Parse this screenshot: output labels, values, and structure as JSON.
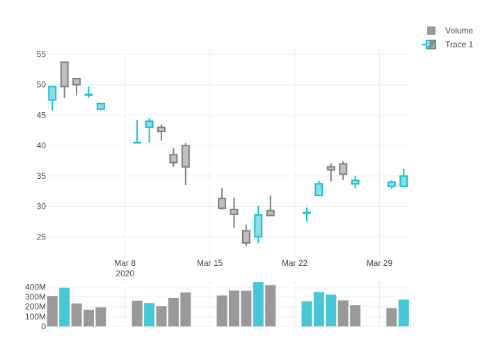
{
  "chart_data": {
    "type": "candlestick",
    "x": [
      "2020-03-02",
      "2020-03-03",
      "2020-03-04",
      "2020-03-05",
      "2020-03-06",
      "2020-03-09",
      "2020-03-10",
      "2020-03-11",
      "2020-03-12",
      "2020-03-13",
      "2020-03-16",
      "2020-03-17",
      "2020-03-18",
      "2020-03-19",
      "2020-03-20",
      "2020-03-23",
      "2020-03-24",
      "2020-03-25",
      "2020-03-26",
      "2020-03-27",
      "2020-03-30",
      "2020-03-31"
    ],
    "open": [
      47.5,
      53.7,
      51.0,
      48.3,
      46.0,
      40.5,
      43.0,
      43.0,
      38.5,
      40.0,
      31.3,
      29.5,
      26.0,
      25.0,
      29.3,
      28.9,
      31.8,
      36.5,
      37.0,
      33.7,
      33.3,
      33.3
    ],
    "high": [
      49.7,
      53.8,
      51.0,
      49.7,
      47.0,
      44.2,
      44.5,
      43.5,
      39.6,
      40.4,
      33.0,
      31.5,
      27.0,
      30.1,
      31.8,
      29.8,
      34.2,
      37.1,
      37.4,
      35.0,
      34.3,
      36.2
    ],
    "low": [
      45.8,
      47.8,
      48.3,
      47.8,
      45.8,
      40.3,
      40.5,
      40.8,
      36.5,
      33.5,
      29.5,
      26.4,
      23.5,
      24.0,
      28.5,
      27.5,
      31.7,
      34.1,
      34.3,
      32.9,
      32.9,
      33.2
    ],
    "close": [
      49.7,
      49.7,
      50.0,
      48.4,
      46.9,
      40.5,
      44.0,
      42.3,
      37.2,
      36.5,
      29.7,
      28.7,
      24.0,
      28.6,
      28.5,
      29.0,
      33.7,
      36.0,
      35.3,
      34.3,
      34.0,
      35.0
    ],
    "volume_m": [
      310,
      392,
      233,
      170,
      195,
      262,
      238,
      205,
      290,
      345,
      315,
      365,
      363,
      452,
      420,
      255,
      350,
      323,
      265,
      218,
      185,
      272
    ],
    "volume_colors": [
      "#999999",
      "#47c7d6",
      "#999999",
      "#999999",
      "#999999",
      "#999999",
      "#47c7d6",
      "#999999",
      "#999999",
      "#999999",
      "#999999",
      "#999999",
      "#999999",
      "#47c7d6",
      "#999999",
      "#47c7d6",
      "#47c7d6",
      "#47c7d6",
      "#999999",
      "#999999",
      "#999999",
      "#47c7d6"
    ],
    "x_ticks": [
      {
        "date": "2020-03-08",
        "label": "Mar 8",
        "sublabel": "2020"
      },
      {
        "date": "2020-03-15",
        "label": "Mar 15",
        "sublabel": ""
      },
      {
        "date": "2020-03-22",
        "label": "Mar 22",
        "sublabel": ""
      },
      {
        "date": "2020-03-29",
        "label": "Mar 29",
        "sublabel": ""
      }
    ],
    "price_ylim": [
      21.6,
      55.8
    ],
    "price_y_ticks": [
      25,
      30,
      35,
      40,
      45,
      50,
      55
    ],
    "volume_ylim": [
      0,
      460
    ],
    "volume_y_ticks": [
      0,
      100,
      200,
      300,
      400
    ],
    "volume_y_tick_labels": [
      "0",
      "100M",
      "200M",
      "300M",
      "400M"
    ],
    "x_range": [
      "2020-03-01T14:00",
      "2020-03-31T12:00"
    ],
    "increasing_color": "#17becf",
    "decreasing_color": "#7f7f7f",
    "increasing_fill": "rgba(23,190,207,0.5)",
    "decreasing_fill": "rgba(127,127,127,0.5)",
    "grid": true,
    "legend_position": "top-right",
    "legend": [
      {
        "name": "Volume",
        "marker": "square",
        "color": "#999999"
      },
      {
        "name": "Trace 1",
        "marker": "candle"
      }
    ]
  }
}
